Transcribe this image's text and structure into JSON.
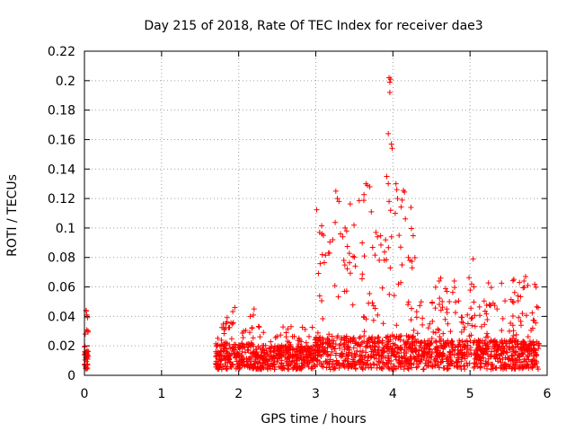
{
  "chart_data": {
    "type": "scatter",
    "title": "Day 215 of 2018, Rate Of TEC Index for receiver dae3",
    "xlabel": "GPS time / hours",
    "ylabel": "ROTI / TECUs",
    "xlim": [
      0,
      6
    ],
    "ylim": [
      0,
      0.22
    ],
    "xticks": [
      0,
      1,
      2,
      3,
      4,
      5,
      6
    ],
    "yticks": [
      0,
      0.02,
      0.04,
      0.06,
      0.08,
      0.1,
      0.12,
      0.14,
      0.16,
      0.18,
      0.2,
      0.22
    ],
    "xtick_labels": [
      "0",
      "1",
      "2",
      "3",
      "4",
      "5",
      "6"
    ],
    "ytick_labels": [
      "0",
      "0.02",
      "0.04",
      "0.06",
      "0.08",
      "0.1",
      "0.12",
      "0.14",
      "0.16",
      "0.18",
      "0.2",
      "0.22"
    ],
    "grid": true,
    "marker": "+",
    "color": "#ff0000",
    "series": [
      {
        "name": "ROTI",
        "segments": [
          {
            "x_start": 0.0,
            "x_end": 0.05,
            "baseline": 0.012,
            "spread": 0.008,
            "peak": 0.044
          },
          {
            "x_start": 1.7,
            "x_end": 2.3,
            "baseline": 0.012,
            "spread": 0.01,
            "peak": 0.046
          },
          {
            "x_start": 2.3,
            "x_end": 3.0,
            "baseline": 0.012,
            "spread": 0.008,
            "peak": 0.035
          },
          {
            "x_start": 3.0,
            "x_end": 4.3,
            "baseline": 0.015,
            "spread": 0.012,
            "peak": 0.126
          },
          {
            "x_start": 4.3,
            "x_end": 5.9,
            "baseline": 0.014,
            "spread": 0.01,
            "peak": 0.067
          }
        ],
        "highlights": [
          {
            "x": 3.05,
            "y": 0.097
          },
          {
            "x": 3.08,
            "y": 0.096
          },
          {
            "x": 3.1,
            "y": 0.095
          },
          {
            "x": 3.26,
            "y": 0.125
          },
          {
            "x": 3.28,
            "y": 0.12
          },
          {
            "x": 3.3,
            "y": 0.118
          },
          {
            "x": 3.22,
            "y": 0.092
          },
          {
            "x": 3.32,
            "y": 0.096
          },
          {
            "x": 3.35,
            "y": 0.094
          },
          {
            "x": 3.38,
            "y": 0.1
          },
          {
            "x": 3.4,
            "y": 0.098
          },
          {
            "x": 3.65,
            "y": 0.13
          },
          {
            "x": 3.67,
            "y": 0.129
          },
          {
            "x": 3.7,
            "y": 0.128
          },
          {
            "x": 3.72,
            "y": 0.111
          },
          {
            "x": 3.78,
            "y": 0.097
          },
          {
            "x": 3.8,
            "y": 0.094
          },
          {
            "x": 3.95,
            "y": 0.202
          },
          {
            "x": 3.96,
            "y": 0.199
          },
          {
            "x": 3.97,
            "y": 0.201
          },
          {
            "x": 3.96,
            "y": 0.192
          },
          {
            "x": 3.94,
            "y": 0.164
          },
          {
            "x": 3.98,
            "y": 0.157
          },
          {
            "x": 3.99,
            "y": 0.154
          },
          {
            "x": 3.92,
            "y": 0.135
          },
          {
            "x": 3.94,
            "y": 0.13
          },
          {
            "x": 3.95,
            "y": 0.118
          },
          {
            "x": 3.97,
            "y": 0.112
          },
          {
            "x": 4.04,
            "y": 0.13
          },
          {
            "x": 4.05,
            "y": 0.126
          },
          {
            "x": 4.06,
            "y": 0.12
          },
          {
            "x": 4.03,
            "y": 0.11
          },
          {
            "x": 4.08,
            "y": 0.095
          },
          {
            "x": 4.1,
            "y": 0.087
          },
          {
            "x": 4.2,
            "y": 0.08
          },
          {
            "x": 4.22,
            "y": 0.078
          },
          {
            "x": 4.25,
            "y": 0.073
          },
          {
            "x": 4.6,
            "y": 0.064
          },
          {
            "x": 4.62,
            "y": 0.066
          },
          {
            "x": 4.7,
            "y": 0.057
          },
          {
            "x": 5.04,
            "y": 0.079
          },
          {
            "x": 5.02,
            "y": 0.062
          },
          {
            "x": 5.05,
            "y": 0.06
          },
          {
            "x": 5.72,
            "y": 0.067
          },
          {
            "x": 5.7,
            "y": 0.064
          },
          {
            "x": 5.75,
            "y": 0.061
          },
          {
            "x": 5.55,
            "y": 0.05
          },
          {
            "x": 5.35,
            "y": 0.045
          },
          {
            "x": 5.25,
            "y": 0.048
          },
          {
            "x": 0.02,
            "y": 0.044
          },
          {
            "x": 0.03,
            "y": 0.041
          },
          {
            "x": 0.01,
            "y": 0.028
          },
          {
            "x": 1.95,
            "y": 0.046
          },
          {
            "x": 2.2,
            "y": 0.045
          },
          {
            "x": 2.15,
            "y": 0.04
          }
        ]
      }
    ]
  }
}
